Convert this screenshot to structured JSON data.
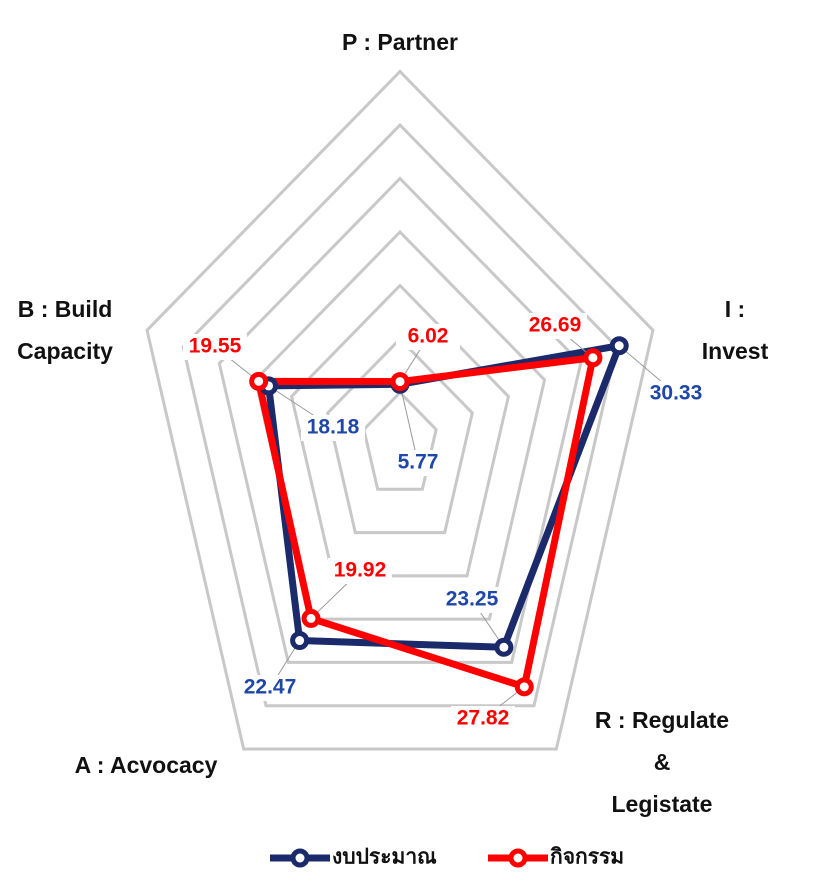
{
  "chart_data": {
    "type": "radar",
    "categories": [
      "P : Partner",
      "I : Invest",
      "R : Regulate &\nLegistate",
      "A : Acvocacy",
      "B : Build\nCapacity"
    ],
    "rlim": [
      0,
      35
    ],
    "rticks": [
      5,
      10,
      15,
      20,
      25,
      30,
      35
    ],
    "grid": true,
    "legend": "bottom",
    "series": [
      {
        "name": "งบประมาณ",
        "color": "#1b2a6b",
        "label_color": "#1f47a8",
        "values": [
          5.77,
          30.33,
          23.25,
          22.47,
          18.18
        ]
      },
      {
        "name": "กิจกรรม",
        "color": "#ff0000",
        "label_color": "#ff0000",
        "values": [
          6.02,
          26.69,
          27.82,
          19.92,
          19.55
        ]
      }
    ]
  }
}
